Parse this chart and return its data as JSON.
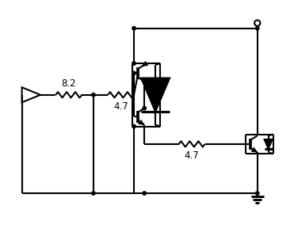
{
  "bg_color": "#ffffff",
  "line_color": "#000000",
  "line_width": 1.5,
  "figsize": [
    3.71,
    2.98
  ],
  "dpi": 100,
  "label_82": "8.2",
  "label_47_top": "4.7",
  "label_47_bot": "4.7"
}
